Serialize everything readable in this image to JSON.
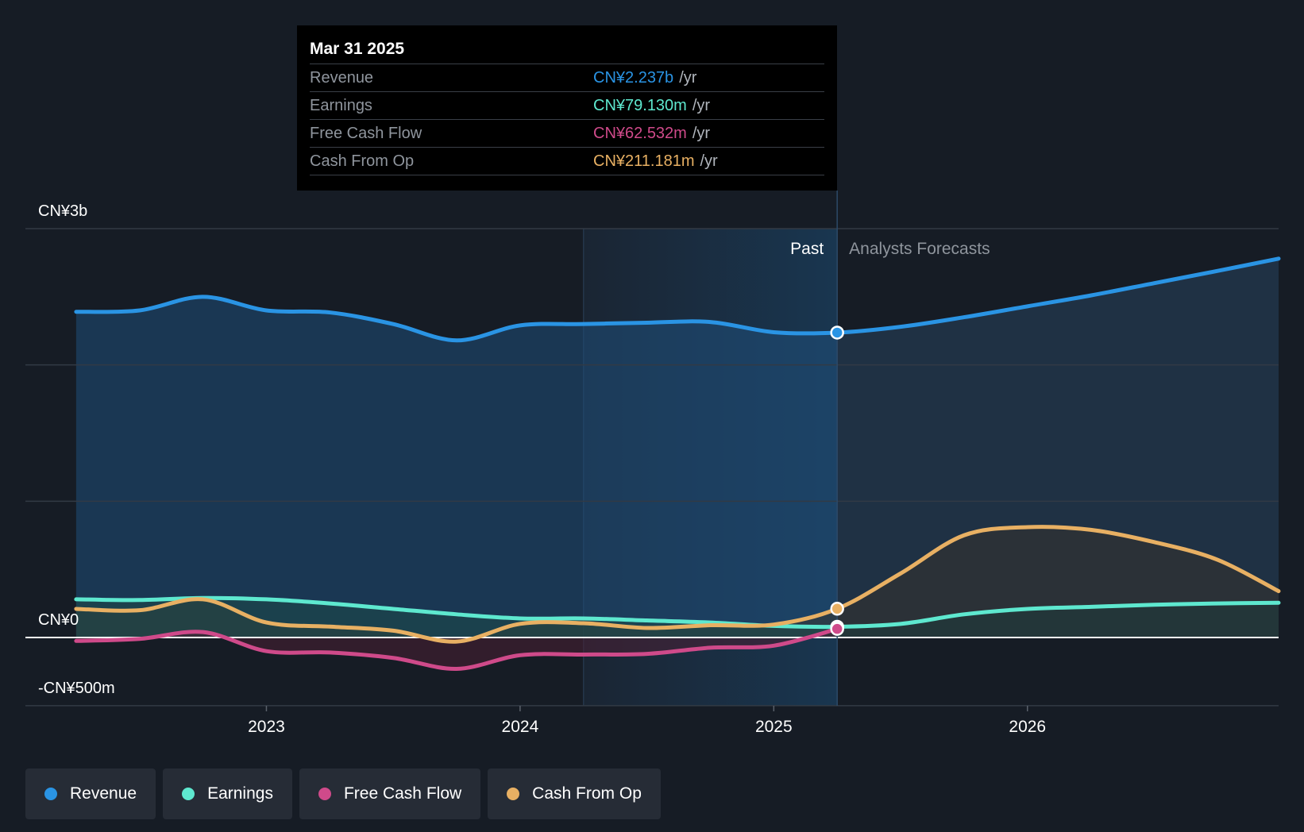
{
  "tooltip": {
    "date": "Mar 31 2025",
    "rows": [
      {
        "label": "Revenue",
        "value": "CN¥2.237b",
        "unit": "/yr",
        "color": "#2a94e4"
      },
      {
        "label": "Earnings",
        "value": "CN¥79.130m",
        "unit": "/yr",
        "color": "#5ee8cf"
      },
      {
        "label": "Free Cash Flow",
        "value": "CN¥62.532m",
        "unit": "/yr",
        "color": "#cf4a8a"
      },
      {
        "label": "Cash From Op",
        "value": "CN¥211.181m",
        "unit": "/yr",
        "color": "#e8b063"
      }
    ]
  },
  "legend": [
    {
      "label": "Revenue",
      "color": "#2a94e4"
    },
    {
      "label": "Earnings",
      "color": "#5ee8cf"
    },
    {
      "label": "Free Cash Flow",
      "color": "#cf4a8a"
    },
    {
      "label": "Cash From Op",
      "color": "#e8b063"
    }
  ],
  "chart_data": {
    "type": "line",
    "title": "",
    "y_unit": "CN¥ millions",
    "ylim": [
      -500,
      3000
    ],
    "y_tick_labels": [
      {
        "value": 3000,
        "label": "CN¥3b"
      },
      {
        "value": 0,
        "label": "CN¥0"
      },
      {
        "value": -500,
        "label": "-CN¥500m"
      }
    ],
    "y_gridlines": [
      3000,
      2000,
      1000,
      0,
      -500
    ],
    "x_ticks": [
      2023,
      2024,
      2025,
      2026
    ],
    "xlim": [
      2022.05,
      2026.99
    ],
    "past_label": "Past",
    "forecast_label": "Analysts Forecasts",
    "highlight_range": [
      2024.25,
      2025.25
    ],
    "cursor_x": 2025.25,
    "series": [
      {
        "name": "Revenue",
        "color": "#2a94e4",
        "fill": "#1f4f7a",
        "fill_forecast": "#26405a",
        "x": [
          2022.25,
          2022.5,
          2022.75,
          2023.0,
          2023.25,
          2023.5,
          2023.75,
          2024.0,
          2024.25,
          2024.5,
          2024.75,
          2025.0,
          2025.25,
          2025.5,
          2025.75,
          2026.0,
          2026.25,
          2026.5,
          2026.75,
          2026.99
        ],
        "y": [
          2390,
          2400,
          2500,
          2400,
          2385,
          2300,
          2180,
          2290,
          2300,
          2310,
          2315,
          2240,
          2237,
          2280,
          2350,
          2430,
          2510,
          2600,
          2690,
          2780
        ]
      },
      {
        "name": "Earnings",
        "color": "#5ee8cf",
        "fill": "#1d4a48",
        "fill_forecast": "#1e3a3a",
        "x": [
          2022.25,
          2022.5,
          2022.75,
          2023.0,
          2023.25,
          2023.5,
          2023.75,
          2024.0,
          2024.25,
          2024.5,
          2024.75,
          2025.0,
          2025.25,
          2025.5,
          2025.75,
          2026.0,
          2026.25,
          2026.5,
          2026.75,
          2026.99
        ],
        "y": [
          280,
          275,
          290,
          280,
          250,
          210,
          170,
          140,
          140,
          125,
          110,
          85,
          79,
          100,
          170,
          210,
          225,
          240,
          250,
          255
        ]
      },
      {
        "name": "Free Cash Flow",
        "color": "#cf4a8a",
        "fill": "#4a1f33",
        "x": [
          2022.25,
          2022.5,
          2022.75,
          2023.0,
          2023.25,
          2023.5,
          2023.75,
          2024.0,
          2024.25,
          2024.5,
          2024.75,
          2025.0,
          2025.25
        ],
        "y": [
          -25,
          -10,
          40,
          -100,
          -110,
          -150,
          -230,
          -130,
          -125,
          -120,
          -75,
          -60,
          63
        ]
      },
      {
        "name": "Cash From Op",
        "color": "#e8b063",
        "fill": "#3a3630",
        "fill_forecast": "#33322f",
        "x": [
          2022.25,
          2022.5,
          2022.75,
          2023.0,
          2023.25,
          2023.5,
          2023.75,
          2024.0,
          2024.25,
          2024.5,
          2024.75,
          2025.0,
          2025.25,
          2025.5,
          2025.75,
          2026.0,
          2026.25,
          2026.5,
          2026.75,
          2026.99
        ],
        "y": [
          210,
          200,
          280,
          110,
          80,
          50,
          -30,
          100,
          105,
          70,
          90,
          95,
          211,
          470,
          750,
          810,
          790,
          700,
          570,
          340
        ]
      }
    ]
  }
}
